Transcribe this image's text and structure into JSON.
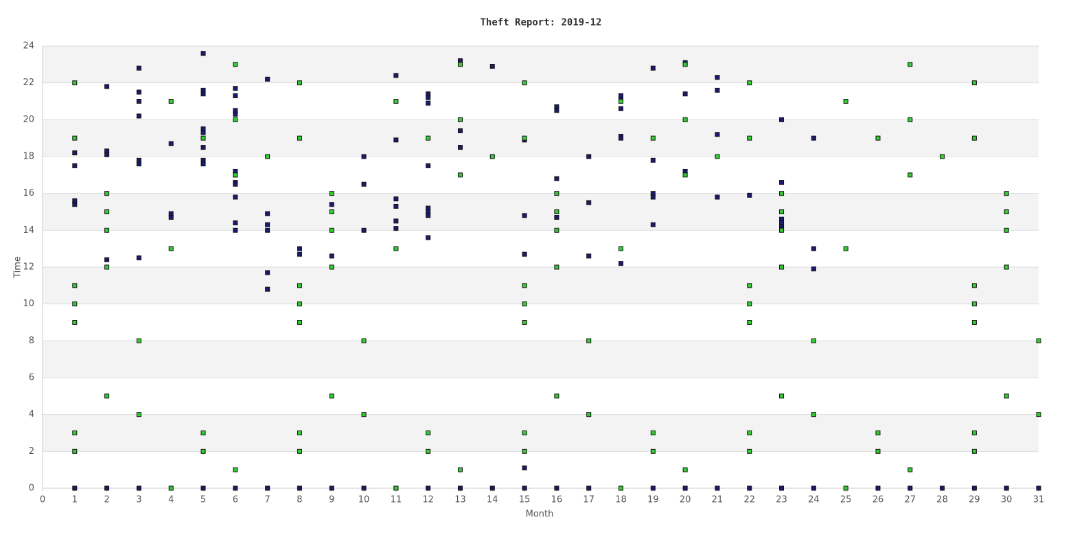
{
  "chart_data": {
    "type": "scatter",
    "title": "Theft Report: 2019-12",
    "x_label": "Month",
    "y_label": "Time",
    "xlim": [
      0,
      31
    ],
    "ylim": [
      0,
      24
    ],
    "xticks": [
      0,
      1,
      2,
      3,
      4,
      5,
      6,
      7,
      8,
      9,
      10,
      11,
      12,
      13,
      14,
      15,
      16,
      17,
      18,
      19,
      20,
      21,
      22,
      23,
      24,
      25,
      26,
      27,
      28,
      29,
      30,
      31
    ],
    "yticks": [
      0,
      2,
      4,
      6,
      8,
      10,
      12,
      14,
      16,
      18,
      20,
      22,
      24
    ],
    "grid": true,
    "series": [
      {
        "color": "#1b1b6f",
        "x": [
          1,
          1,
          1,
          1,
          1,
          2,
          2,
          2,
          2,
          2,
          3,
          3,
          3,
          3,
          3,
          3,
          3,
          3,
          4,
          4,
          4,
          5,
          5,
          5,
          5,
          5,
          5,
          5,
          5,
          5,
          6,
          6,
          6,
          6,
          6,
          6,
          6,
          6,
          6,
          6,
          6,
          6,
          7,
          7,
          7,
          7,
          7,
          7,
          7,
          8,
          8,
          8,
          9,
          9,
          9,
          10,
          10,
          10,
          10,
          11,
          11,
          11,
          11,
          11,
          11,
          11,
          12,
          12,
          12,
          12,
          12,
          12,
          12,
          12,
          12,
          13,
          13,
          13,
          13,
          14,
          14,
          15,
          15,
          15,
          15,
          15,
          16,
          16,
          16,
          16,
          16,
          17,
          17,
          17,
          17,
          18,
          18,
          18,
          18,
          18,
          18,
          19,
          19,
          19,
          19,
          19,
          19,
          20,
          20,
          20,
          20,
          21,
          21,
          21,
          21,
          21,
          22,
          22,
          23,
          23,
          23,
          23,
          23,
          23,
          23,
          24,
          24,
          24,
          24,
          26,
          27,
          28,
          29,
          30,
          31
        ],
        "values": [
          18.2,
          17.5,
          15.6,
          15.4,
          0,
          21.8,
          18.3,
          18.1,
          12.4,
          0,
          22.8,
          21.5,
          21.0,
          20.2,
          17.8,
          17.6,
          12.5,
          0,
          18.7,
          14.9,
          14.7,
          23.6,
          21.6,
          21.4,
          19.5,
          19.3,
          18.5,
          17.8,
          17.6,
          0,
          21.7,
          21.3,
          20.5,
          20.3,
          17.2,
          17.0,
          16.6,
          16.5,
          15.8,
          14.4,
          14.0,
          0,
          22.2,
          14.9,
          14.3,
          14.0,
          11.7,
          10.8,
          0,
          13.0,
          12.7,
          0,
          15.4,
          12.6,
          0,
          18.0,
          16.5,
          14.0,
          0,
          22.4,
          18.9,
          15.7,
          15.3,
          14.5,
          14.1,
          0,
          21.4,
          21.2,
          20.9,
          17.5,
          15.2,
          15.0,
          14.8,
          13.6,
          0,
          23.2,
          19.4,
          18.5,
          0,
          22.9,
          0,
          18.9,
          14.8,
          12.7,
          1.1,
          0,
          20.7,
          20.5,
          16.8,
          14.7,
          0,
          18.0,
          15.5,
          12.6,
          0,
          21.3,
          21.1,
          20.6,
          19.1,
          19.0,
          12.2,
          22.8,
          17.8,
          16.0,
          15.8,
          14.3,
          0,
          23.1,
          21.4,
          17.2,
          0,
          22.3,
          21.6,
          19.2,
          15.8,
          0,
          15.9,
          0,
          20.0,
          16.6,
          14.6,
          14.4,
          14.2,
          14.1,
          0,
          19.0,
          13.0,
          11.9,
          0,
          0,
          0,
          0,
          0,
          0,
          0
        ]
      },
      {
        "color": "#33cc33",
        "x": [
          1,
          1,
          1,
          1,
          1,
          1,
          1,
          2,
          2,
          2,
          2,
          2,
          3,
          3,
          4,
          4,
          4,
          5,
          5,
          5,
          6,
          6,
          6,
          6,
          7,
          8,
          8,
          8,
          8,
          8,
          8,
          8,
          9,
          9,
          9,
          9,
          9,
          10,
          10,
          11,
          11,
          11,
          12,
          12,
          12,
          13,
          13,
          13,
          13,
          14,
          15,
          15,
          15,
          15,
          15,
          15,
          15,
          16,
          16,
          16,
          16,
          16,
          17,
          17,
          18,
          18,
          18,
          19,
          19,
          19,
          20,
          20,
          20,
          20,
          21,
          22,
          22,
          22,
          22,
          22,
          22,
          22,
          23,
          23,
          23,
          23,
          23,
          24,
          24,
          25,
          25,
          25,
          26,
          26,
          26,
          27,
          27,
          27,
          27,
          28,
          29,
          29,
          29,
          29,
          29,
          29,
          29,
          30,
          30,
          30,
          30,
          30,
          31,
          31
        ],
        "values": [
          22,
          19,
          11,
          10,
          9,
          3,
          2,
          16,
          15,
          14,
          12,
          5,
          8,
          4,
          21,
          13,
          0,
          19,
          3,
          2,
          23,
          20,
          17,
          1,
          18,
          22,
          19,
          11,
          10,
          9,
          3,
          2,
          16,
          15,
          14,
          12,
          5,
          8,
          4,
          21,
          13,
          0,
          19,
          3,
          2,
          23,
          20,
          17,
          1,
          18,
          22,
          19,
          11,
          10,
          9,
          3,
          2,
          16,
          15,
          14,
          12,
          5,
          8,
          4,
          21,
          13,
          0,
          19,
          3,
          2,
          23,
          20,
          17,
          1,
          18,
          22,
          19,
          11,
          10,
          9,
          3,
          2,
          16,
          15,
          14,
          12,
          5,
          8,
          4,
          21,
          13,
          0,
          19,
          3,
          2,
          23,
          20,
          17,
          1,
          18,
          22,
          19,
          11,
          10,
          9,
          3,
          2,
          16,
          15,
          14,
          12,
          5,
          8,
          4
        ]
      }
    ]
  }
}
